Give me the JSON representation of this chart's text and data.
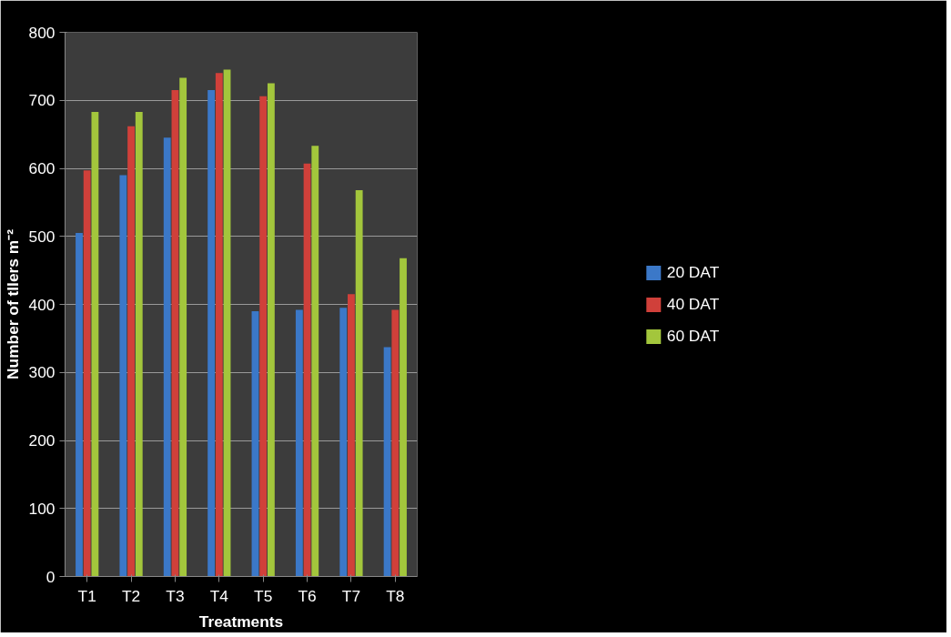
{
  "chart_data": {
    "type": "bar",
    "xlabel": "Treatments",
    "ylabel": "Number of tllers m⁻²",
    "categories": [
      "T1",
      "T2",
      "T3",
      "T4",
      "T5",
      "T6",
      "T7",
      "T8"
    ],
    "series": [
      {
        "name": "20 DAT",
        "color": "#3b78c8",
        "values": [
          505,
          590,
          645,
          715,
          390,
          392,
          395,
          337
        ]
      },
      {
        "name": "40 DAT",
        "color": "#d0403a",
        "values": [
          597,
          662,
          715,
          740,
          706,
          607,
          415,
          392
        ]
      },
      {
        "name": "60 DAT",
        "color": "#a3c63c",
        "values": [
          683,
          683,
          733,
          745,
          725,
          633,
          568,
          468
        ]
      }
    ],
    "ylim": [
      0,
      800
    ],
    "yticks": [
      0,
      100,
      200,
      300,
      400,
      500,
      600,
      700,
      800
    ],
    "grid": "y",
    "legend": "right"
  }
}
